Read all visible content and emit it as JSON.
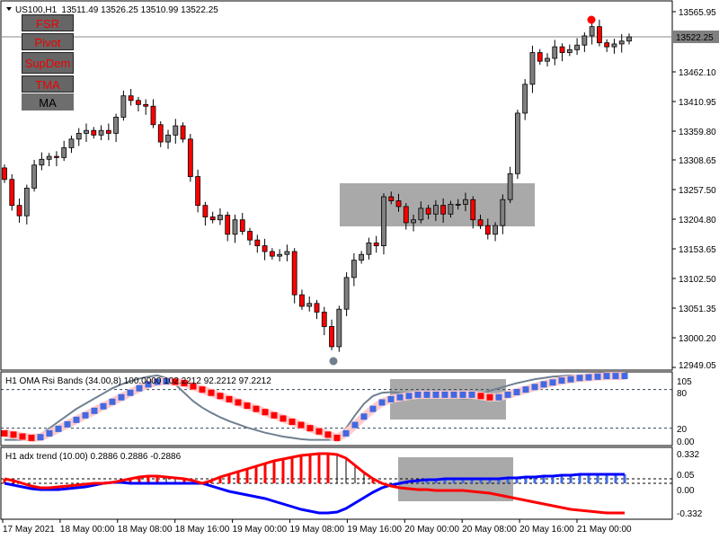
{
  "header": {
    "symbol": "US100,H1",
    "ohlc": "13511.49 13526.25 13510.99 13522.25"
  },
  "buttons": [
    {
      "label": "FSR",
      "color": "#e00000"
    },
    {
      "label": "Pivot",
      "color": "#e00000"
    },
    {
      "label": "SupDem",
      "color": "#e00000"
    },
    {
      "label": "TMA",
      "color": "#e00000"
    },
    {
      "label": "MA",
      "color": "#000000"
    }
  ],
  "price_axis": {
    "labels": [
      "13565.95",
      "13462.10",
      "13410.95",
      "13359.80",
      "13308.65",
      "13257.50",
      "13204.80",
      "13153.65",
      "13102.50",
      "13051.35",
      "13000.20",
      "12949.05"
    ],
    "current": "13522.25",
    "range": [
      12949.05,
      13565.95
    ]
  },
  "colors": {
    "bull": "#808080",
    "bear": "#ff0000",
    "rising": "#4169e1",
    "falling": "#ff0000",
    "box": "#a9a9a9"
  },
  "closes": [
    13275,
    13230,
    13212,
    13260,
    13300,
    13310,
    13315,
    13313,
    13330,
    13345,
    13355,
    13360,
    13352,
    13360,
    13355,
    13383,
    13420,
    13412,
    13405,
    13402,
    13370,
    13340,
    13352,
    13368,
    13345,
    13280,
    13230,
    13210,
    13205,
    13213,
    13180,
    13205,
    13185,
    13170,
    13160,
    13150,
    13142,
    13145,
    13150,
    13075,
    13055,
    13060,
    13045,
    13020,
    12985,
    13050,
    13105,
    13135,
    13145,
    13165,
    13160,
    13245,
    13238,
    13228,
    13200,
    13205,
    13225,
    13215,
    13230,
    13215,
    13232,
    13232,
    13240,
    13205,
    13195,
    13180,
    13195,
    13240,
    13285,
    13390,
    13440,
    13495,
    13480,
    13485,
    13505,
    13495,
    13500,
    13508,
    13524,
    13540,
    13512,
    13505,
    13510,
    13515,
    13522.25
  ],
  "oma_panel": {
    "title": "H1 OMA Rsi Bands (34.00,8) 100.0000 102.2212 92.2212 97.2212",
    "levels": [
      "105",
      "80",
      "20",
      "0.00"
    ],
    "level_values": [
      105,
      80,
      20,
      0
    ],
    "oma": [
      12,
      10,
      7,
      5,
      6,
      12,
      19,
      26,
      33,
      40,
      47,
      54,
      61,
      68,
      75,
      82,
      88,
      92,
      93,
      92,
      90,
      85,
      80,
      75,
      70,
      65,
      60,
      55,
      50,
      45,
      40,
      35,
      30,
      25,
      20,
      15,
      10,
      5,
      12,
      25,
      38,
      50,
      60,
      65,
      68,
      70,
      72,
      72,
      72,
      72,
      72,
      72,
      72,
      70,
      68,
      68,
      72,
      76,
      80,
      84,
      88,
      91,
      94,
      96,
      98,
      99,
      100,
      101,
      101,
      101
    ],
    "band": [
      2,
      2,
      2,
      3,
      10,
      20,
      30,
      40,
      50,
      58,
      66,
      74,
      82,
      88,
      93,
      97,
      100,
      102,
      98,
      88,
      75,
      62,
      52,
      44,
      37,
      31,
      26,
      21,
      17,
      13,
      10,
      7,
      5,
      3,
      2,
      2,
      2,
      3,
      20,
      40,
      58,
      70,
      75,
      76,
      75,
      74,
      74,
      74,
      73,
      72,
      68,
      66,
      67,
      72,
      78,
      82,
      86,
      90,
      93,
      96,
      98,
      100,
      101,
      102,
      102,
      102,
      102,
      102,
      102,
      102
    ]
  },
  "adx_panel": {
    "title": "H1 adx trend (10.00) 0.2886 0.2886 -0.2886",
    "levels": [
      "0.332",
      "0.05",
      "0.00",
      "-0.332"
    ],
    "level_values": [
      0.332,
      0.05,
      0,
      -0.332
    ],
    "blue": [
      0.0,
      -0.02,
      -0.04,
      -0.06,
      -0.07,
      -0.07,
      -0.07,
      -0.06,
      -0.05,
      -0.04,
      -0.02,
      0.0,
      0.01,
      0.01,
      0.0,
      0.0,
      0.0,
      0.0,
      0.0,
      0.0,
      0.0,
      0.0,
      0.0,
      -0.03,
      -0.06,
      -0.09,
      -0.11,
      -0.13,
      -0.15,
      -0.17,
      -0.2,
      -0.23,
      -0.26,
      -0.29,
      -0.31,
      -0.33,
      -0.33,
      -0.32,
      -0.28,
      -0.22,
      -0.16,
      -0.1,
      -0.05,
      -0.02,
      0.0,
      0.02,
      0.03,
      0.04,
      0.04,
      0.05,
      0.05,
      0.05,
      0.05,
      0.05,
      0.05,
      0.05,
      0.06,
      0.06,
      0.07,
      0.07,
      0.08,
      0.08,
      0.09,
      0.09,
      0.1,
      0.1,
      0.1,
      0.1,
      0.1,
      0.1
    ],
    "red": [
      0.05,
      0.03,
      0.0,
      -0.03,
      -0.05,
      -0.05,
      -0.04,
      -0.03,
      -0.02,
      -0.01,
      0.0,
      0.0,
      0.01,
      0.03,
      0.05,
      0.07,
      0.08,
      0.08,
      0.07,
      0.06,
      0.05,
      0.03,
      0.0,
      0.03,
      0.07,
      0.1,
      0.13,
      0.16,
      0.19,
      0.22,
      0.25,
      0.27,
      0.29,
      0.31,
      0.32,
      0.33,
      0.33,
      0.32,
      0.28,
      0.2,
      0.12,
      0.05,
      0.0,
      -0.03,
      -0.05,
      -0.06,
      -0.07,
      -0.07,
      -0.08,
      -0.08,
      -0.08,
      -0.08,
      -0.09,
      -0.1,
      -0.11,
      -0.13,
      -0.15,
      -0.17,
      -0.19,
      -0.21,
      -0.23,
      -0.25,
      -0.27,
      -0.29,
      -0.3,
      -0.31,
      -0.32,
      -0.33,
      -0.33,
      -0.33
    ]
  },
  "time_axis": [
    "17 May 2021",
    "18 May 00:00",
    "18 May 08:00",
    "18 May 16:00",
    "19 May 00:00",
    "19 May 08:00",
    "19 May 16:00",
    "20 May 00:00",
    "20 May 08:00",
    "20 May 16:00",
    "21 May 00:00"
  ]
}
